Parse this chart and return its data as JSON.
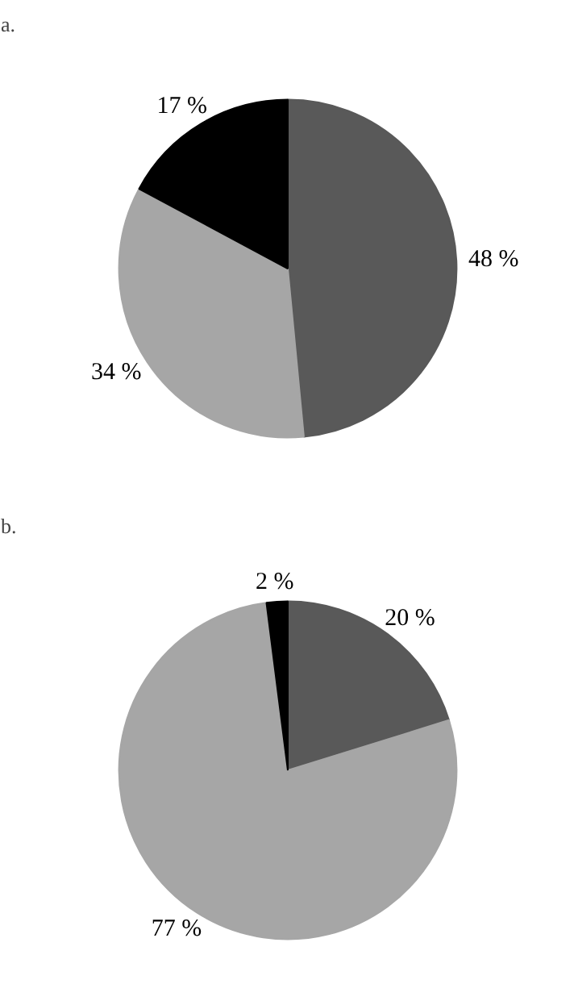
{
  "chart_data": [
    {
      "type": "pie",
      "title": "a.",
      "categories": [
        null,
        null,
        null
      ],
      "values": [
        48,
        34,
        17
      ],
      "colors": [
        "#595959",
        "#a6a6a6",
        "#000000"
      ],
      "value_labels": [
        "48 %",
        "34 %",
        "17 %"
      ]
    },
    {
      "type": "pie",
      "title": "b.",
      "categories": [
        null,
        null,
        null
      ],
      "values": [
        20,
        77,
        2
      ],
      "colors": [
        "#595959",
        "#a6a6a6",
        "#000000"
      ],
      "value_labels": [
        "20 %",
        "77 %",
        "2 %"
      ]
    }
  ]
}
